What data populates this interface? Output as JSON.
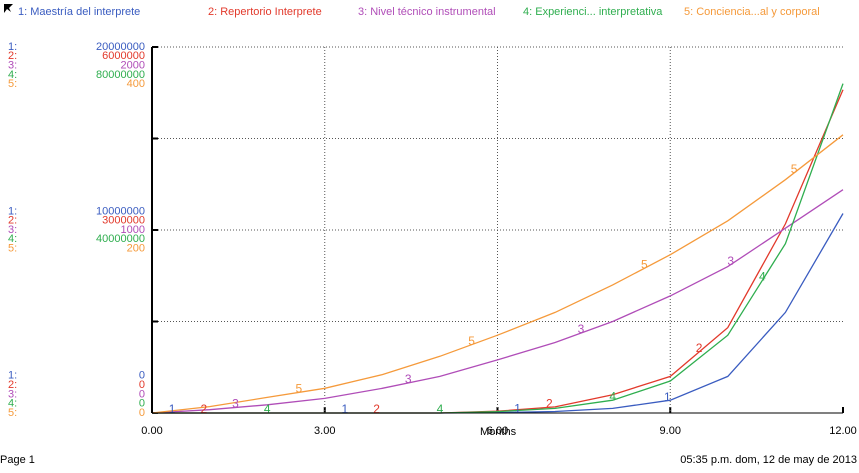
{
  "chart_data": {
    "type": "line",
    "x_label": "Months",
    "footer_left": "Page 1",
    "footer_right": "05:35 p.m.  dom, 12 de may de 2013",
    "xlim": [
      0,
      12
    ],
    "xticks": [
      {
        "value": 0,
        "label": "0.00"
      },
      {
        "value": 3,
        "label": "3.00"
      },
      {
        "value": 6,
        "label": "6.00"
      },
      {
        "value": 9,
        "label": "9.00"
      },
      {
        "value": 12,
        "label": "12.00"
      }
    ],
    "grid": true,
    "x": [
      0,
      1,
      2,
      3,
      4,
      5,
      6,
      7,
      8,
      9,
      10,
      11,
      12
    ],
    "series": [
      {
        "name": "1: Maestría del interprete",
        "key": "1:",
        "marker": "1",
        "color": "#3a5cc0",
        "ylim": [
          0,
          20000000
        ],
        "yticks": [
          0,
          10000000,
          20000000
        ],
        "values": [
          0,
          0,
          0,
          0,
          0,
          0,
          20000,
          80000,
          250000,
          700000,
          2000000,
          5500000,
          10900000
        ]
      },
      {
        "name": "2: Repertorio Interprete",
        "key": "2:",
        "marker": "2",
        "color": "#e2392b",
        "ylim": [
          0,
          6000000
        ],
        "yticks": [
          0,
          3000000,
          6000000
        ],
        "values": [
          0,
          0,
          0,
          0,
          0,
          0,
          30000,
          100000,
          300000,
          600000,
          1400000,
          3100000,
          5300000
        ]
      },
      {
        "name": "3: Nivel  técnico instrumental",
        "key": "3:",
        "marker": "3",
        "color": "#b04db8",
        "ylim": [
          0,
          2000
        ],
        "yticks": [
          0,
          1000,
          2000
        ],
        "values": [
          0,
          18,
          45,
          80,
          135,
          200,
          290,
          385,
          500,
          640,
          800,
          1010,
          1220
        ]
      },
      {
        "name": "4: Experienci... interpretativa",
        "key": "4:",
        "marker": "4",
        "color": "#2fae4f",
        "ylim": [
          0,
          80000000
        ],
        "yticks": [
          0,
          40000000,
          80000000
        ],
        "values": [
          0,
          0,
          0,
          0,
          0,
          0,
          300000,
          1000000,
          2800000,
          7000000,
          17000000,
          37000000,
          72000000
        ]
      },
      {
        "name": "5: Conciencia...al  y corporal",
        "key": "5:",
        "marker": "5",
        "color": "#f59a3b",
        "ylim": [
          0,
          400
        ],
        "yticks": [
          0,
          200,
          400
        ],
        "values": [
          0,
          7,
          17,
          27,
          42,
          62,
          85,
          110,
          140,
          173,
          210,
          255,
          304
        ]
      }
    ]
  }
}
